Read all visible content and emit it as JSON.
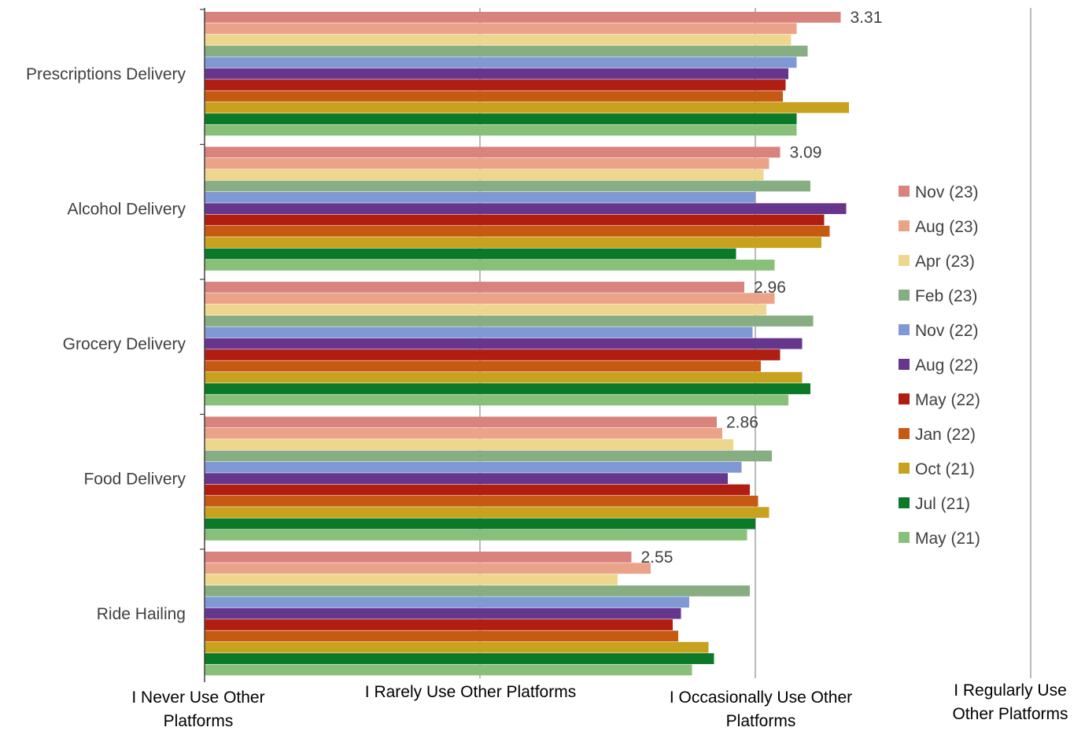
{
  "chart_data": {
    "type": "bar",
    "orientation": "horizontal",
    "categories": [
      "Prescriptions Delivery",
      "Alcohol Delivery",
      "Grocery Delivery",
      "Food Delivery",
      "Ride Hailing"
    ],
    "x_tick_labels": [
      {
        "value": 1,
        "label": "I Never Use Other Platforms"
      },
      {
        "value": 2,
        "label": "I Rarely Use Other Platforms"
      },
      {
        "value": 3,
        "label": "I Occasionally Use Other Platforms"
      },
      {
        "value": 4,
        "label": "I Regularly Use Other Platforms"
      }
    ],
    "xlim": [
      1,
      4
    ],
    "grid": true,
    "legend_position": "right",
    "series": [
      {
        "name": "Nov (23)",
        "color": "#D8837E",
        "values": [
          3.31,
          3.09,
          2.96,
          2.86,
          2.55
        ]
      },
      {
        "name": "Aug (23)",
        "color": "#EAA388",
        "values": [
          3.15,
          3.05,
          3.07,
          2.88,
          2.62
        ]
      },
      {
        "name": "Apr (23)",
        "color": "#EED68E",
        "values": [
          3.13,
          3.03,
          3.04,
          2.92,
          2.5
        ]
      },
      {
        "name": "Feb (23)",
        "color": "#86AE82",
        "values": [
          3.19,
          3.2,
          3.21,
          3.06,
          2.98
        ]
      },
      {
        "name": "Nov (22)",
        "color": "#8098D4",
        "values": [
          3.15,
          3.0,
          2.99,
          2.95,
          2.76
        ]
      },
      {
        "name": "Aug (22)",
        "color": "#66358C",
        "values": [
          3.12,
          3.33,
          3.17,
          2.9,
          2.73
        ]
      },
      {
        "name": "May (22)",
        "color": "#B01E12",
        "values": [
          3.11,
          3.25,
          3.09,
          2.98,
          2.7
        ]
      },
      {
        "name": "Jan (22)",
        "color": "#C65A12",
        "values": [
          3.1,
          3.27,
          3.02,
          3.01,
          2.72
        ]
      },
      {
        "name": "Oct (21)",
        "color": "#C8A21E",
        "values": [
          3.34,
          3.24,
          3.17,
          3.05,
          2.83
        ]
      },
      {
        "name": "Jul (21)",
        "color": "#0A7A28",
        "values": [
          3.15,
          2.93,
          3.2,
          3.0,
          2.85
        ]
      },
      {
        "name": "May (21)",
        "color": "#88C07A",
        "values": [
          3.15,
          3.07,
          3.12,
          2.97,
          2.77
        ]
      }
    ],
    "data_labels": [
      {
        "category": "Prescriptions Delivery",
        "series": "Nov (23)",
        "text": "3.31"
      },
      {
        "category": "Alcohol Delivery",
        "series": "Nov (23)",
        "text": "3.09"
      },
      {
        "category": "Grocery Delivery",
        "series": "Nov (23)",
        "text": "2.96"
      },
      {
        "category": "Food Delivery",
        "series": "Nov (23)",
        "text": "2.86"
      },
      {
        "category": "Ride Hailing",
        "series": "Nov (23)",
        "text": "2.55"
      }
    ]
  }
}
